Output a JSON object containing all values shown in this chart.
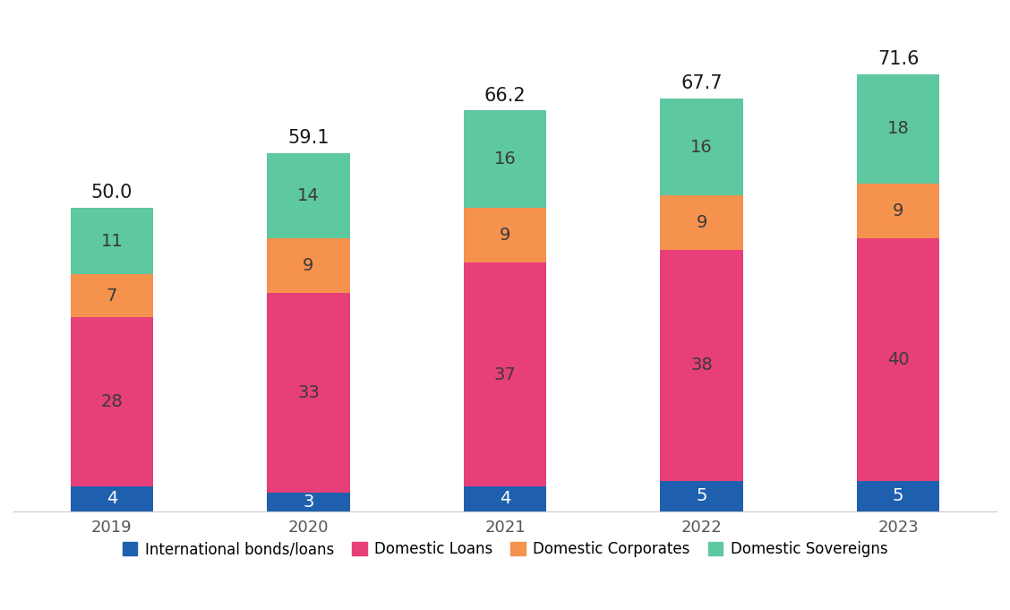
{
  "years": [
    "2019",
    "2020",
    "2021",
    "2022",
    "2023"
  ],
  "international_bonds": [
    4,
    3,
    4,
    5,
    5
  ],
  "domestic_loans": [
    28,
    33,
    37,
    38,
    40
  ],
  "domestic_corporates": [
    7,
    9,
    9,
    9,
    9
  ],
  "domestic_sovereigns": [
    11,
    14,
    16,
    16,
    18
  ],
  "totals": [
    "50.0",
    "59.1",
    "66.2",
    "67.7",
    "71.6"
  ],
  "colors": {
    "international_bonds": "#1f60ae",
    "domestic_loans": "#e63f7a",
    "domestic_corporates": "#f5924e",
    "domestic_sovereigns": "#5ec8a0"
  },
  "legend_labels": [
    "International bonds/loans",
    "Domestic Loans",
    "Domestic Corporates",
    "Domestic Sovereigns"
  ],
  "bar_width": 0.42,
  "ylim": [
    0,
    82
  ],
  "background_color": "#ffffff",
  "label_fontsize": 14,
  "total_fontsize": 15,
  "tick_fontsize": 13,
  "legend_fontsize": 12,
  "intl_label_color": "#ffffff",
  "segment_label_color": "#3a3a3a",
  "total_label_color": "#1a1a1a"
}
